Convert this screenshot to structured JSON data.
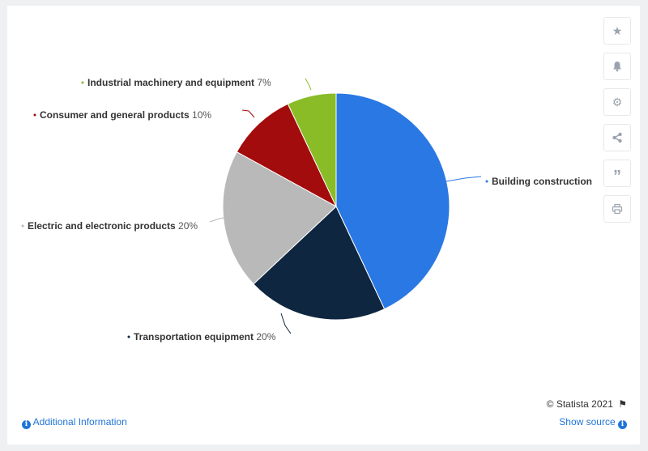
{
  "chart_data": {
    "type": "pie",
    "slices": [
      {
        "name": "Building construction",
        "value": 43,
        "color": "#2a78e4",
        "label_text": ""
      },
      {
        "name": "Transportation equipment",
        "value": 20,
        "color": "#0f2640",
        "label_text": "20%"
      },
      {
        "name": "Electric and electronic products",
        "value": 20,
        "color": "#b9b9b9",
        "label_text": "20%"
      },
      {
        "name": "Consumer and general products",
        "value": 10,
        "color": "#a30c0c",
        "label_text": "10%"
      },
      {
        "name": "Industrial machinery and equipment",
        "value": 7,
        "color": "#8abc27",
        "label_text": "7%"
      }
    ]
  },
  "toolbar": {
    "icons": [
      "star-icon",
      "bell-icon",
      "gear-icon",
      "share-icon",
      "quote-icon",
      "print-icon"
    ]
  },
  "footer": {
    "credit": "© Statista 2021",
    "additional_info": "Additional Information",
    "show_source": "Show source"
  }
}
